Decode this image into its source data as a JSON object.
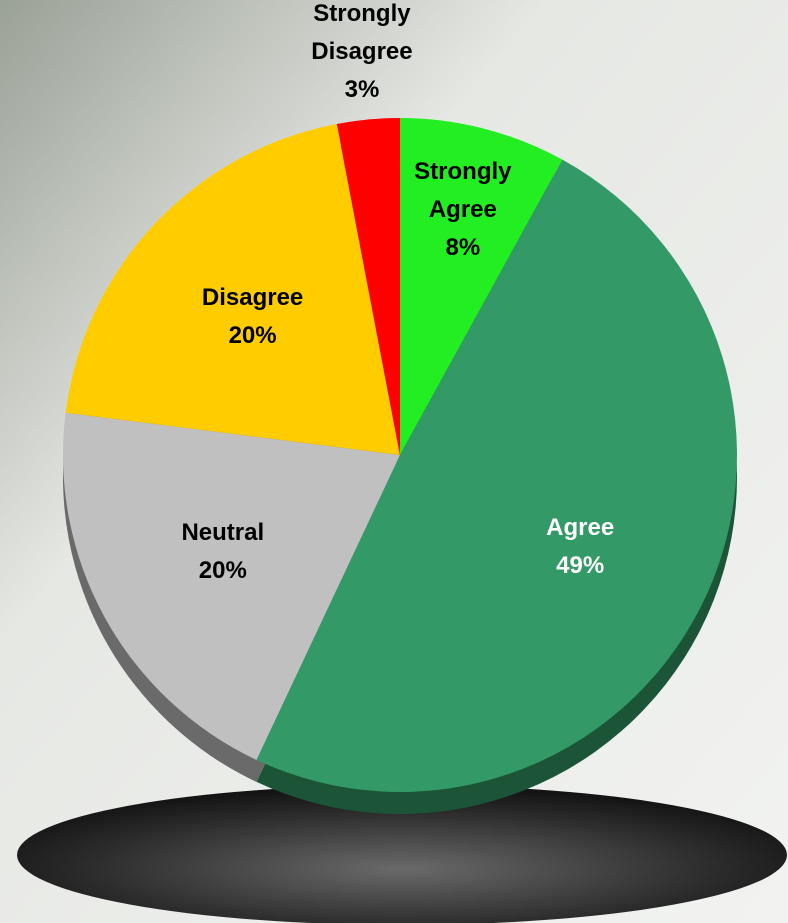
{
  "chart_data": {
    "type": "pie",
    "categories": [
      "Strongly Agree",
      "Agree",
      "Neutral",
      "Disagree",
      "Strongly Disagree"
    ],
    "values": [
      8,
      49,
      20,
      20,
      3
    ],
    "value_labels": [
      "8%",
      "49%",
      "20%",
      "20%",
      "3%"
    ],
    "colors": [
      "#22ee22",
      "#339966",
      "#c0c0c0",
      "#ffcc00",
      "#ff0000"
    ],
    "label_colors": [
      "#000000",
      "#ffffff",
      "#000000",
      "#000000",
      "#000000"
    ]
  }
}
